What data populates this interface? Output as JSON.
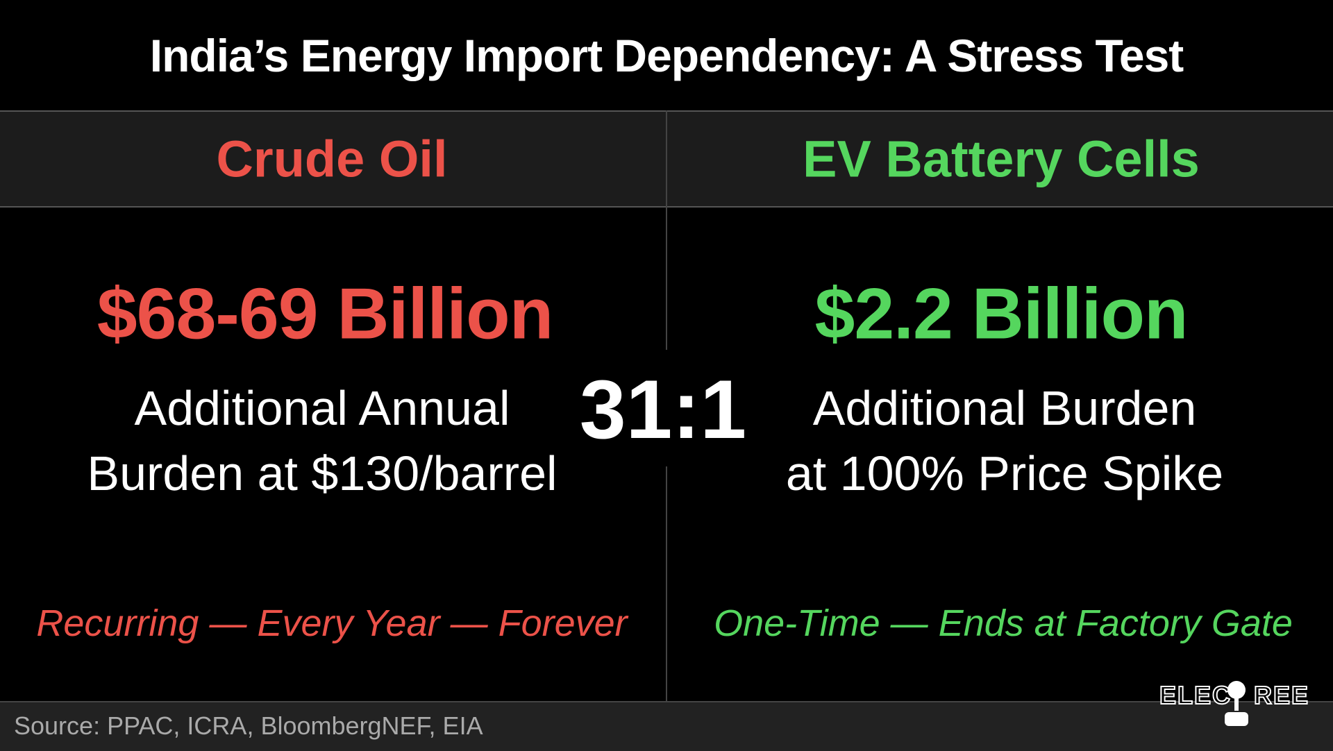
{
  "header": {
    "title": "India’s Energy Import Dependency: A Stress Test"
  },
  "left": {
    "heading": "Crude Oil",
    "figure": "$68-69 Billion",
    "description": [
      "Additional Annual",
      "Burden at $130/barrel"
    ],
    "note": "Recurring — Every Year — Forever"
  },
  "right": {
    "heading": "EV Battery Cells",
    "figure": "$2.2 Billion",
    "description": [
      "Additional Burden",
      "at 100% Price Spike"
    ],
    "note": "One-Time — Ends at Factory Gate"
  },
  "ratio": "31:1",
  "footer": {
    "source": "Source: PPAC, ICRA, BloombergNEF, EIA",
    "logo": [
      "ELEC",
      "REE"
    ]
  }
}
